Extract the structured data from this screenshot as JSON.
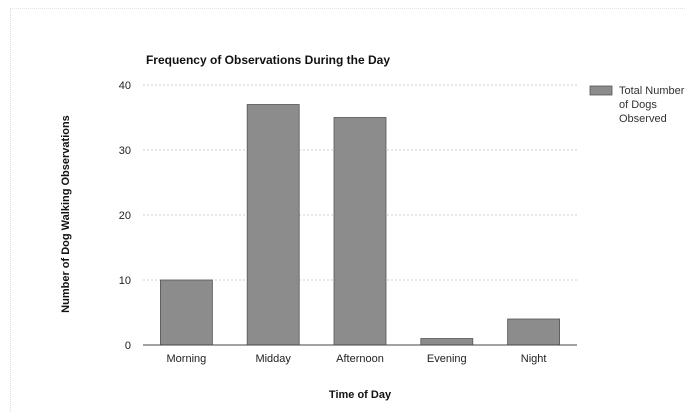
{
  "chart_data": {
    "type": "bar",
    "title": "Frequency of Observations During the Day",
    "xlabel": "Time of Day",
    "ylabel": "Number of Dog Walking Observations",
    "categories": [
      "Morning",
      "Midday",
      "Afternoon",
      "Evening",
      "Night"
    ],
    "series": [
      {
        "name": "Total Number of Dogs Observed",
        "values": [
          10,
          37,
          35,
          1,
          4
        ]
      }
    ],
    "ylim": [
      0,
      40
    ],
    "yticks": [
      0,
      10,
      20,
      30,
      40
    ],
    "grid": true,
    "legend": "right",
    "legend_lines": [
      "Total Number",
      "of Dogs",
      "Observed"
    ],
    "colors": {
      "bar": "#8c8c8c",
      "bar_edge": "#555555",
      "grid": "#cfcfcf",
      "axis": "#444444"
    }
  }
}
